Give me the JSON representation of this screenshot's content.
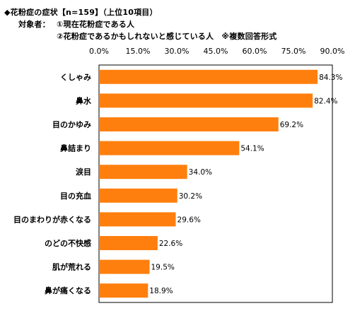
{
  "header": {
    "title": "◆花粉症の症状【n=159】（上位10項目）",
    "target_label": "対象者：",
    "target_1": "①現在花粉症である人",
    "target_2": "②花粉症であるかもしれないと感じている人　※複数回答形式"
  },
  "chart_data": {
    "type": "bar",
    "orientation": "horizontal",
    "categories": [
      "くしゃみ",
      "鼻水",
      "目のかゆみ",
      "鼻詰まり",
      "涙目",
      "目の充血",
      "目のまわりが赤くなる",
      "のどの不快感",
      "肌が荒れる",
      "鼻が痛くなる"
    ],
    "values": [
      84.3,
      82.4,
      69.2,
      54.1,
      34.0,
      30.2,
      29.6,
      22.6,
      19.5,
      18.9
    ],
    "value_labels": [
      "84.3%",
      "82.4%",
      "69.2%",
      "54.1%",
      "34.0%",
      "30.2%",
      "29.6%",
      "22.6%",
      "19.5%",
      "18.9%"
    ],
    "x_ticks": [
      "0.0%",
      "15.0%",
      "30.0%",
      "45.0%",
      "60.0%",
      "75.0%",
      "90.0%"
    ],
    "xlim": [
      0,
      90
    ],
    "bar_color": "#FF7F0E",
    "grid": false,
    "legend": "none"
  }
}
